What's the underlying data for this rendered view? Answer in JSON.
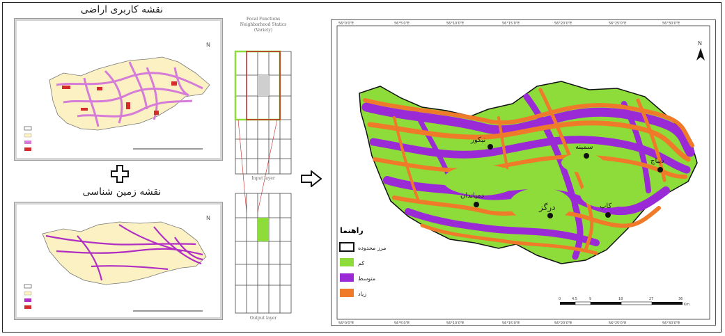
{
  "left_top": {
    "title": "نقشه کاربری اراضی"
  },
  "left_bottom": {
    "title": "نقشه زمین شناسی"
  },
  "grid_top": {
    "caption_lines": [
      "Focal Functions",
      "Neighborhood Statics",
      "(Variety)"
    ],
    "bottom_caption": "Input layer"
  },
  "grid_bottom": {
    "bottom_caption": "Output layer"
  },
  "main_map": {
    "legend_title": "راهنما",
    "legend": [
      {
        "label": "مرز محدوده",
        "color": "#ffffff"
      },
      {
        "label": "کم",
        "color": "#8edc3a"
      },
      {
        "label": "متوسط",
        "color": "#9a2ad6"
      },
      {
        "label": "زیاد",
        "color": "#ef7a2a"
      }
    ],
    "places": [
      "نیکور",
      "سمینه",
      "دیباج",
      "دمیاندان",
      "کاپ",
      "درگز"
    ],
    "scale_labels": [
      "0",
      "4.5",
      "9",
      "18",
      "27",
      "36",
      "Km"
    ],
    "top_ticks": [
      "56°0'0\"E",
      "56°5'0\"E",
      "56°10'0\"E",
      "56°15'0\"E",
      "56°20'0\"E",
      "56°25'0\"E",
      "56°30'0\"E"
    ],
    "north": "N",
    "colors": {
      "low": "#8edc3a",
      "medium": "#9a2ad6",
      "high": "#ef7a2a"
    }
  },
  "mini_north": "N"
}
